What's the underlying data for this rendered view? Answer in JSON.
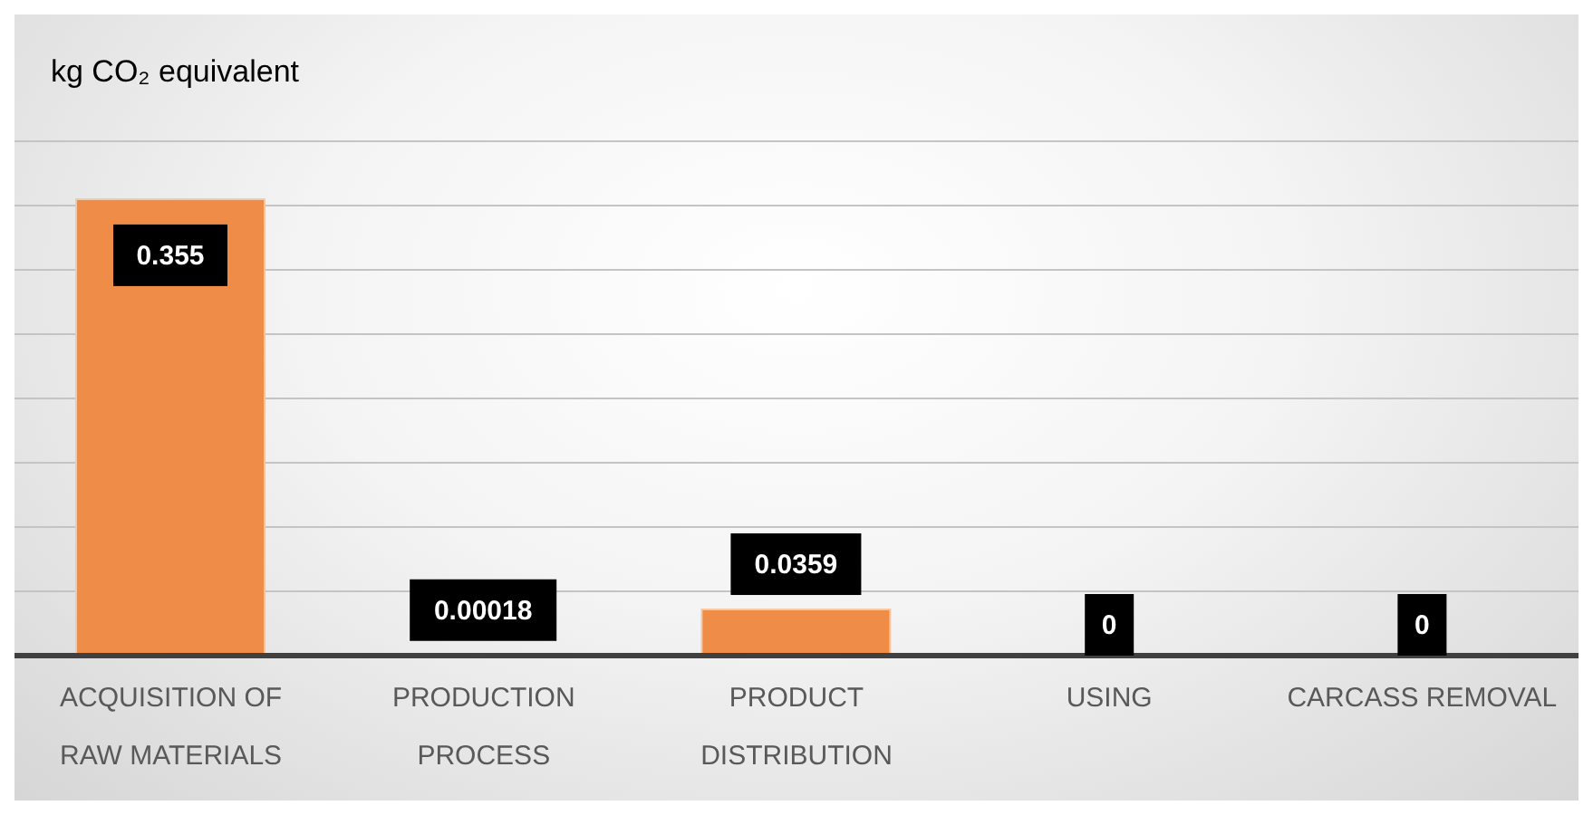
{
  "chart_data": {
    "type": "bar",
    "title": "kg CO₂ equivalent",
    "categories": [
      "ACQUISITION OF RAW MATERIALS",
      "PRODUCTION PROCESS",
      "PRODUCT DISTRIBUTION",
      "USING",
      "CARCASS REMOVAL"
    ],
    "values": [
      0.355,
      0.00018,
      0.0359,
      0,
      0
    ],
    "color": "#ee8c48",
    "ylim": [
      0,
      0.4
    ],
    "yticks": [
      {
        "value": 0,
        "label": null
      },
      {
        "value": 0.05,
        "label": null
      },
      {
        "value": 0.1,
        "label": null
      },
      {
        "value": 0.15,
        "label": null
      },
      {
        "value": 0.2,
        "label": null
      },
      {
        "value": 0.25,
        "label": null
      },
      {
        "value": 0.3,
        "label": null
      },
      {
        "value": 0.35,
        "label": null
      },
      {
        "value": 0.4,
        "label": null
      }
    ],
    "grid": "y",
    "tick_labels": "x",
    "data_labels": true,
    "legend": false
  }
}
